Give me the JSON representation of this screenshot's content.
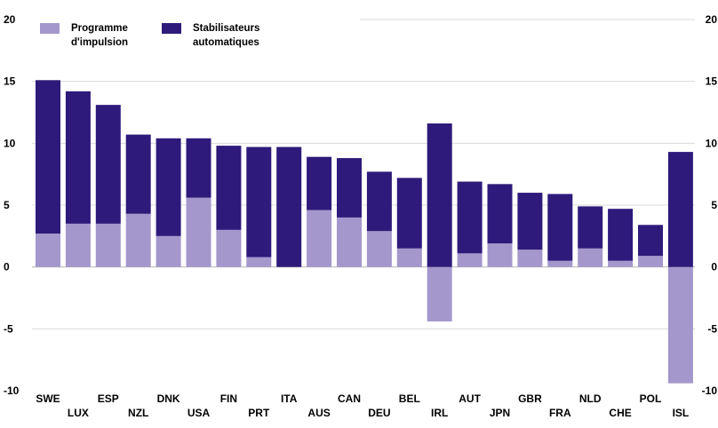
{
  "chart_data": {
    "type": "bar",
    "stacked": true,
    "categories": [
      "SWE",
      "LUX",
      "ESP",
      "NZL",
      "DNK",
      "USA",
      "FIN",
      "PRT",
      "ITA",
      "AUS",
      "CAN",
      "DEU",
      "BEL",
      "IRL",
      "AUT",
      "JPN",
      "GBR",
      "FRA",
      "NLD",
      "CHE",
      "POL",
      "ISL"
    ],
    "series": [
      {
        "name": "Programme d'impulsion",
        "color": "#a497cc",
        "values": [
          2.7,
          3.5,
          3.5,
          4.3,
          2.5,
          5.6,
          3.0,
          0.8,
          0.0,
          4.6,
          4.0,
          2.9,
          1.5,
          -4.4,
          1.1,
          1.9,
          1.4,
          0.5,
          1.5,
          0.5,
          0.9,
          -9.4
        ]
      },
      {
        "name": "Stabilisateurs automatiques",
        "color": "#2e1a7a",
        "values": [
          12.4,
          10.7,
          9.6,
          6.4,
          7.9,
          4.8,
          6.8,
          8.9,
          9.7,
          4.3,
          4.8,
          4.8,
          5.7,
          11.6,
          5.8,
          4.8,
          4.6,
          5.4,
          3.4,
          4.2,
          2.5,
          9.3
        ]
      }
    ],
    "ylim": [
      -10,
      20
    ],
    "yticks": [
      -10,
      -5,
      0,
      5,
      10,
      15,
      20
    ],
    "legend_position": "top-left",
    "legend_lines": [
      [
        "Programme",
        "d'impulsion"
      ],
      [
        "Stabilisateurs",
        "automatiques"
      ]
    ],
    "grid": true,
    "xlabel": "",
    "ylabel": "",
    "title": ""
  }
}
